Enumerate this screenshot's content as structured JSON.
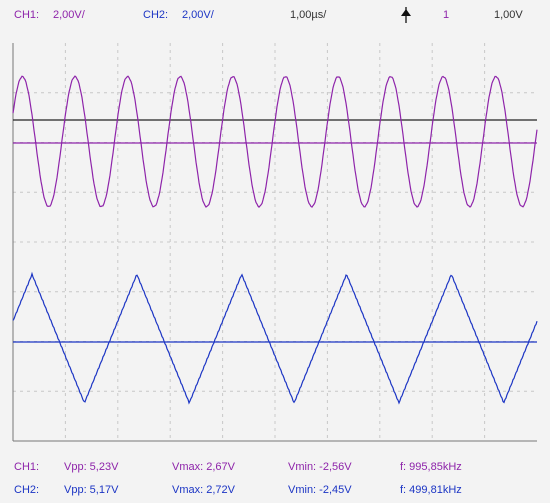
{
  "colors": {
    "ch1": "#8e24aa",
    "ch2": "#1c35c4",
    "text": "#333333",
    "grid": "#c8c8c8",
    "axis": "#777777",
    "trigger_line": "#222222"
  },
  "header": {
    "ch1_label": "CH1:",
    "ch1_scale": "2,00V/",
    "ch2_label": "CH2:",
    "ch2_scale": "2,00V/",
    "timebase": "1,00µs/",
    "trigger_icon": "trigger-rising-edge-icon",
    "trigger_channel": "1",
    "trigger_level": "1,00V"
  },
  "measurements": [
    {
      "label": "CH1:",
      "vpp": "Vpp: 5,23V",
      "vmax": "Vmax: 2,67V",
      "vmin": "Vmin: -2,56V",
      "freq": "f: 995,85kHz"
    },
    {
      "label": "CH2:",
      "vpp": "Vpp: 5,17V",
      "vmax": "Vmax: 2,72V",
      "vmin": "Vmin: -2,45V",
      "freq": "f: 499,81kHz"
    }
  ],
  "chart_data": {
    "type": "line",
    "time_per_div_us": 1,
    "volts_per_div": 2,
    "grid": true,
    "series": [
      {
        "name": "CH1",
        "waveform": "sine",
        "frequency_khz": 995.85,
        "vmax": 2.67,
        "vmin": -2.56
      },
      {
        "name": "CH2",
        "waveform": "triangle",
        "frequency_khz": 499.81,
        "vmax": 2.72,
        "vmin": -2.45
      }
    ]
  }
}
